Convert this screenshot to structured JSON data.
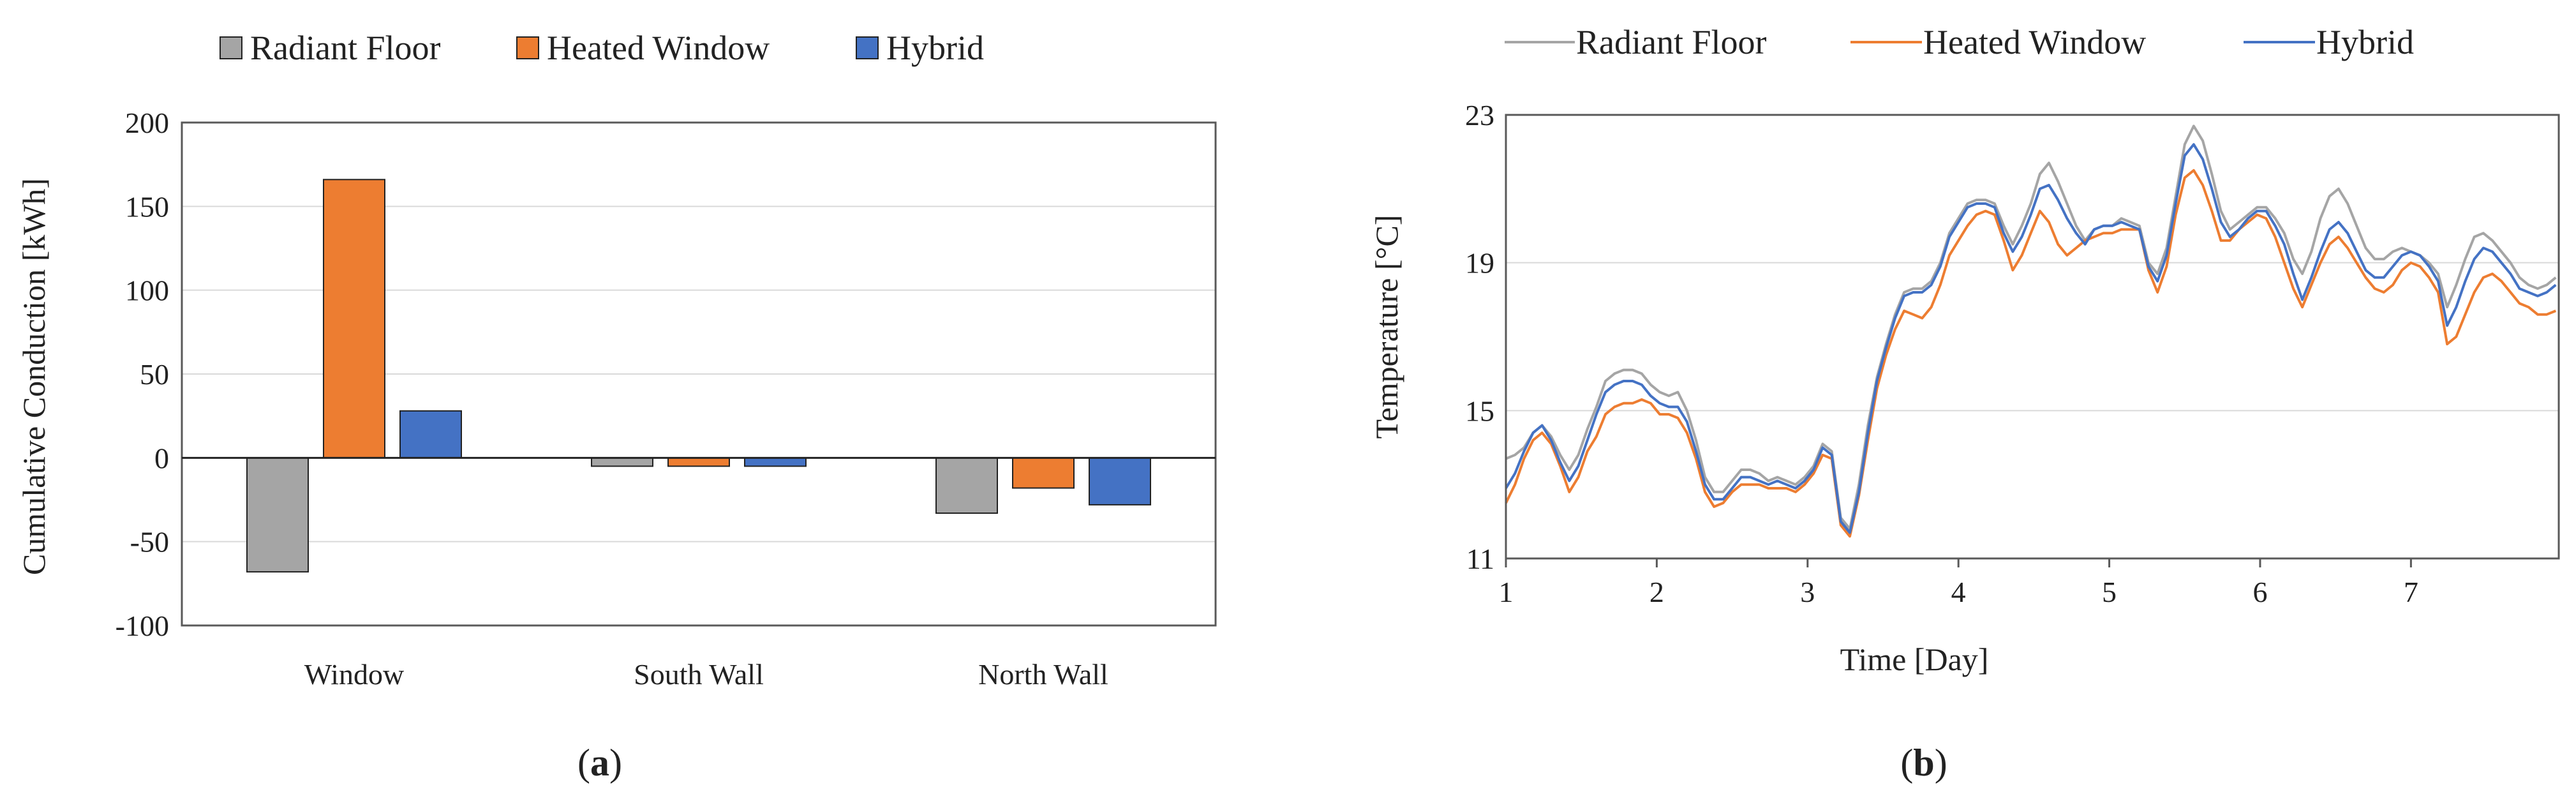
{
  "colors": {
    "radiant_floor": "#a5a5a5",
    "heated_window": "#ed7d31",
    "hybrid": "#4472c4",
    "gridline": "#d9d9d9",
    "axis": "#595959"
  },
  "chart_data": [
    {
      "id": "a",
      "type": "bar",
      "panel_label": "(a)",
      "panel_letter": "a",
      "title": "",
      "categories": [
        "Window",
        "South Wall",
        "North Wall"
      ],
      "series": [
        {
          "name": "Radiant Floor",
          "color_key": "radiant_floor",
          "values": [
            -68,
            -5,
            -33
          ]
        },
        {
          "name": "Heated Window",
          "color_key": "heated_window",
          "values": [
            166,
            -5,
            -18
          ]
        },
        {
          "name": "Hybrid",
          "color_key": "hybrid",
          "values": [
            28,
            -5,
            -28
          ]
        }
      ],
      "xlabel": "",
      "ylabel": "Cumulative Conduction [kWh]",
      "ylim": [
        -100,
        200
      ],
      "yticks": [
        -100,
        -50,
        0,
        50,
        100,
        150,
        200
      ],
      "grid": true,
      "legend": "top"
    },
    {
      "id": "b",
      "type": "line",
      "panel_label": "(b)",
      "panel_letter": "b",
      "title": "",
      "xlabel": "Time [Day]",
      "ylabel": "Temperature [°C]",
      "xlim": [
        1,
        7.98
      ],
      "ylim": [
        11,
        23
      ],
      "xticks": [
        1,
        2,
        3,
        4,
        5,
        6,
        7
      ],
      "yticks": [
        11,
        15,
        19,
        23
      ],
      "grid": true,
      "legend": "top",
      "x": [
        1.0,
        1.06,
        1.12,
        1.18,
        1.24,
        1.3,
        1.36,
        1.42,
        1.48,
        1.54,
        1.6,
        1.66,
        1.72,
        1.78,
        1.84,
        1.9,
        1.96,
        2.02,
        2.08,
        2.14,
        2.2,
        2.26,
        2.32,
        2.38,
        2.44,
        2.5,
        2.56,
        2.62,
        2.68,
        2.74,
        2.8,
        2.86,
        2.92,
        2.98,
        3.04,
        3.1,
        3.16,
        3.22,
        3.28,
        3.34,
        3.4,
        3.46,
        3.52,
        3.58,
        3.64,
        3.7,
        3.76,
        3.82,
        3.88,
        3.94,
        4.0,
        4.06,
        4.12,
        4.18,
        4.24,
        4.3,
        4.36,
        4.42,
        4.48,
        4.54,
        4.6,
        4.66,
        4.72,
        4.78,
        4.84,
        4.9,
        4.96,
        5.02,
        5.08,
        5.14,
        5.2,
        5.26,
        5.32,
        5.38,
        5.44,
        5.5,
        5.56,
        5.62,
        5.68,
        5.74,
        5.8,
        5.86,
        5.92,
        5.98,
        6.04,
        6.1,
        6.16,
        6.22,
        6.28,
        6.34,
        6.4,
        6.46,
        6.52,
        6.58,
        6.64,
        6.7,
        6.76,
        6.82,
        6.88,
        6.94,
        7.0,
        7.06,
        7.12,
        7.18,
        7.24,
        7.3,
        7.36,
        7.42,
        7.48,
        7.54,
        7.6,
        7.66,
        7.72,
        7.78,
        7.84,
        7.9,
        7.96
      ],
      "series": [
        {
          "name": "Radiant Floor",
          "color_key": "radiant_floor",
          "values": [
            13.7,
            13.8,
            14.0,
            14.4,
            14.6,
            14.3,
            13.8,
            13.4,
            13.8,
            14.5,
            15.1,
            15.8,
            16.0,
            16.1,
            16.1,
            16.0,
            15.7,
            15.5,
            15.4,
            15.5,
            15.0,
            14.2,
            13.2,
            12.8,
            12.8,
            13.1,
            13.4,
            13.4,
            13.3,
            13.1,
            13.2,
            13.1,
            13.0,
            13.2,
            13.5,
            14.1,
            13.9,
            12.1,
            11.8,
            13.0,
            14.6,
            15.9,
            16.8,
            17.6,
            18.2,
            18.3,
            18.3,
            18.5,
            19.0,
            19.8,
            20.2,
            20.6,
            20.7,
            20.7,
            20.6,
            20.0,
            19.5,
            20.0,
            20.6,
            21.4,
            21.7,
            21.2,
            20.6,
            20.0,
            19.6,
            19.9,
            20.0,
            20.0,
            20.2,
            20.1,
            20.0,
            19.0,
            18.7,
            19.4,
            20.8,
            22.2,
            22.7,
            22.3,
            21.4,
            20.4,
            19.9,
            20.1,
            20.3,
            20.5,
            20.5,
            20.2,
            19.8,
            19.1,
            18.7,
            19.3,
            20.2,
            20.8,
            21.0,
            20.6,
            20.0,
            19.4,
            19.1,
            19.1,
            19.3,
            19.4,
            19.3,
            19.2,
            19.0,
            18.7,
            17.8,
            18.4,
            19.1,
            19.7,
            19.8,
            19.6,
            19.3,
            19.0,
            18.6,
            18.4,
            18.3,
            18.4,
            18.6
          ],
          "color": "#a5a5a5"
        },
        {
          "name": "Heated Window",
          "color_key": "heated_window",
          "values": [
            12.5,
            13.0,
            13.7,
            14.2,
            14.4,
            14.1,
            13.5,
            12.8,
            13.2,
            13.9,
            14.3,
            14.9,
            15.1,
            15.2,
            15.2,
            15.3,
            15.2,
            14.9,
            14.9,
            14.8,
            14.4,
            13.7,
            12.8,
            12.4,
            12.5,
            12.8,
            13.0,
            13.0,
            13.0,
            12.9,
            12.9,
            12.9,
            12.8,
            13.0,
            13.3,
            13.8,
            13.7,
            11.9,
            11.6,
            12.7,
            14.2,
            15.6,
            16.5,
            17.2,
            17.7,
            17.6,
            17.5,
            17.8,
            18.4,
            19.2,
            19.6,
            20.0,
            20.3,
            20.4,
            20.3,
            19.6,
            18.8,
            19.2,
            19.8,
            20.4,
            20.1,
            19.5,
            19.2,
            19.4,
            19.6,
            19.7,
            19.8,
            19.8,
            19.9,
            19.9,
            19.9,
            18.8,
            18.2,
            18.9,
            20.3,
            21.3,
            21.5,
            21.1,
            20.4,
            19.6,
            19.6,
            19.9,
            20.1,
            20.3,
            20.2,
            19.7,
            19.0,
            18.3,
            17.8,
            18.4,
            19.0,
            19.5,
            19.7,
            19.4,
            19.0,
            18.6,
            18.3,
            18.2,
            18.4,
            18.8,
            19.0,
            18.9,
            18.6,
            18.2,
            16.8,
            17.0,
            17.6,
            18.2,
            18.6,
            18.7,
            18.5,
            18.2,
            17.9,
            17.8,
            17.6,
            17.6,
            17.7
          ],
          "color": "#ed7d31"
        },
        {
          "name": "Hybrid",
          "color_key": "hybrid",
          "values": [
            12.9,
            13.3,
            13.9,
            14.4,
            14.6,
            14.2,
            13.6,
            13.1,
            13.5,
            14.2,
            14.9,
            15.5,
            15.7,
            15.8,
            15.8,
            15.7,
            15.4,
            15.2,
            15.1,
            15.1,
            14.7,
            13.9,
            13.0,
            12.6,
            12.6,
            12.9,
            13.2,
            13.2,
            13.1,
            13.0,
            13.1,
            13.0,
            12.9,
            13.1,
            13.4,
            14.0,
            13.8,
            12.0,
            11.7,
            12.8,
            14.4,
            15.8,
            16.7,
            17.5,
            18.1,
            18.2,
            18.2,
            18.4,
            18.9,
            19.7,
            20.1,
            20.5,
            20.6,
            20.6,
            20.5,
            19.8,
            19.3,
            19.7,
            20.3,
            21.0,
            21.1,
            20.7,
            20.2,
            19.8,
            19.5,
            19.9,
            20.0,
            20.0,
            20.1,
            20.0,
            19.9,
            18.9,
            18.5,
            19.2,
            20.6,
            21.9,
            22.2,
            21.8,
            21.0,
            20.1,
            19.7,
            19.9,
            20.2,
            20.4,
            20.4,
            20.0,
            19.5,
            18.7,
            18.0,
            18.6,
            19.3,
            19.9,
            20.1,
            19.8,
            19.3,
            18.8,
            18.6,
            18.6,
            18.9,
            19.2,
            19.3,
            19.2,
            18.9,
            18.5,
            17.3,
            17.8,
            18.5,
            19.1,
            19.4,
            19.3,
            19.0,
            18.7,
            18.3,
            18.2,
            18.1,
            18.2,
            18.4
          ],
          "color": "#4472c4"
        }
      ]
    }
  ]
}
